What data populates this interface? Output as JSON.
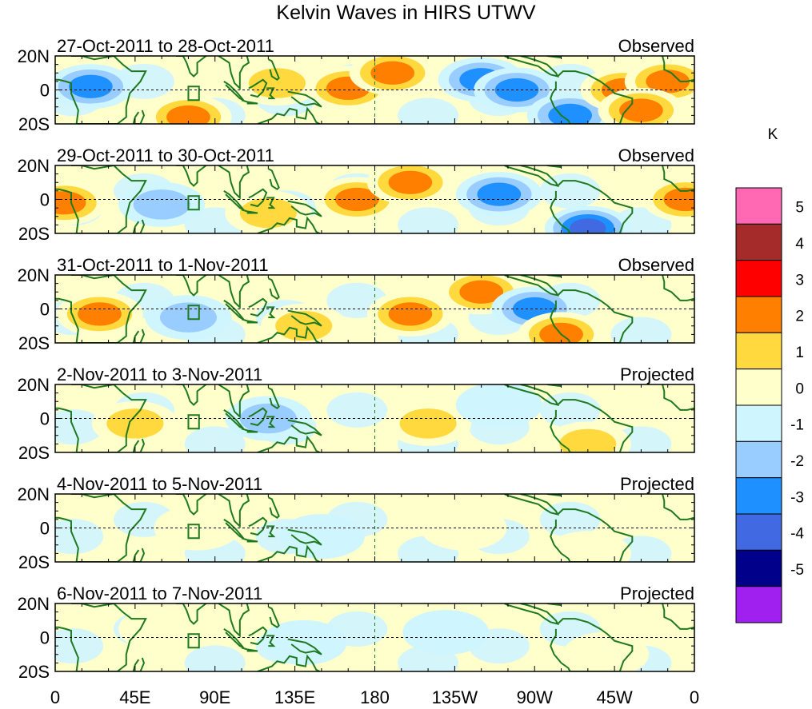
{
  "title": "Kelvin Waves in HIRS UTWV",
  "chart_data": {
    "type": "heatmap",
    "title": "Kelvin Waves in HIRS UTWV",
    "xlabel": "",
    "ylabel": "",
    "x_ticks": [
      "0",
      "45E",
      "90E",
      "135E",
      "180",
      "135W",
      "90W",
      "45W",
      "0"
    ],
    "x_range_deg_east": [
      0,
      360
    ],
    "y_ticks": [
      "20N",
      "0",
      "20S"
    ],
    "y_range_deg": [
      -20,
      20
    ],
    "colorbar": {
      "unit": "K",
      "levels": [
        -5,
        -4,
        -3,
        -2,
        -1,
        0,
        1,
        2,
        3,
        4,
        5
      ],
      "level_labels": [
        "-5",
        "-4",
        "-3",
        "-2",
        "-1",
        "0",
        "1",
        "2",
        "3",
        "4",
        "5"
      ],
      "colors": [
        "#a020f0",
        "#00008b",
        "#4169e1",
        "#1e90ff",
        "#99ccff",
        "#cff5ff",
        "#ffffcc",
        "#ffd93d",
        "#ff7f00",
        "#ff0000",
        "#a52a2a",
        "#ff69b4"
      ]
    },
    "panels": [
      {
        "period": "27-Oct-2011 to 28-Oct-2011",
        "type": "Observed",
        "features": [
          {
            "lon": 20,
            "lat": 2,
            "value": -3
          },
          {
            "lon": 75,
            "lat": -16,
            "value": 3
          },
          {
            "lon": 125,
            "lat": 4,
            "value": 2
          },
          {
            "lon": 165,
            "lat": 1,
            "value": 3
          },
          {
            "lon": 190,
            "lat": 10,
            "value": 3
          },
          {
            "lon": 240,
            "lat": 6,
            "value": -3
          },
          {
            "lon": 260,
            "lat": 0,
            "value": -3
          },
          {
            "lon": 290,
            "lat": -15,
            "value": -3
          },
          {
            "lon": 320,
            "lat": 0,
            "value": 3
          },
          {
            "lon": 345,
            "lat": 5,
            "value": 3
          },
          {
            "lon": 330,
            "lat": -12,
            "value": 3
          }
        ]
      },
      {
        "period": "29-Oct-2011 to 30-Oct-2011",
        "type": "Observed",
        "features": [
          {
            "lon": 5,
            "lat": -2,
            "value": 3
          },
          {
            "lon": 60,
            "lat": -3,
            "value": -2
          },
          {
            "lon": 120,
            "lat": -8,
            "value": 2
          },
          {
            "lon": 170,
            "lat": 0,
            "value": 3
          },
          {
            "lon": 200,
            "lat": 10,
            "value": 3
          },
          {
            "lon": 250,
            "lat": 3,
            "value": -3
          },
          {
            "lon": 300,
            "lat": -17,
            "value": -4
          },
          {
            "lon": 355,
            "lat": 0,
            "value": 3
          }
        ]
      },
      {
        "period": "31-Oct-2011 to 1-Nov-2011",
        "type": "Observed",
        "features": [
          {
            "lon": 25,
            "lat": -3,
            "value": 3
          },
          {
            "lon": 75,
            "lat": -5,
            "value": -2
          },
          {
            "lon": 140,
            "lat": -10,
            "value": 2
          },
          {
            "lon": 200,
            "lat": -3,
            "value": 3
          },
          {
            "lon": 240,
            "lat": 10,
            "value": 3
          },
          {
            "lon": 270,
            "lat": 0,
            "value": -3
          },
          {
            "lon": 285,
            "lat": -15,
            "value": 3
          }
        ]
      },
      {
        "period": "2-Nov-2011 to 3-Nov-2011",
        "type": "Projected",
        "features": [
          {
            "lon": 45,
            "lat": -3,
            "value": 2
          },
          {
            "lon": 120,
            "lat": 0,
            "value": -2
          },
          {
            "lon": 210,
            "lat": -3,
            "value": 2
          },
          {
            "lon": 250,
            "lat": 8,
            "value": -1
          },
          {
            "lon": 300,
            "lat": -15,
            "value": 2
          }
        ]
      },
      {
        "period": "4-Nov-2011 to 5-Nov-2011",
        "type": "Projected",
        "features": [
          {
            "lon": 80,
            "lat": 0,
            "value": 1
          },
          {
            "lon": 150,
            "lat": -5,
            "value": -1
          },
          {
            "lon": 230,
            "lat": 0,
            "value": 1
          },
          {
            "lon": 300,
            "lat": -15,
            "value": 1
          }
        ]
      },
      {
        "period": "6-Nov-2011 to 7-Nov-2011",
        "type": "Projected",
        "features": [
          {
            "lon": 60,
            "lat": 5,
            "value": 1
          },
          {
            "lon": 140,
            "lat": -3,
            "value": -1
          },
          {
            "lon": 220,
            "lat": 3,
            "value": -1
          },
          {
            "lon": 310,
            "lat": -10,
            "value": 1
          }
        ]
      }
    ]
  }
}
